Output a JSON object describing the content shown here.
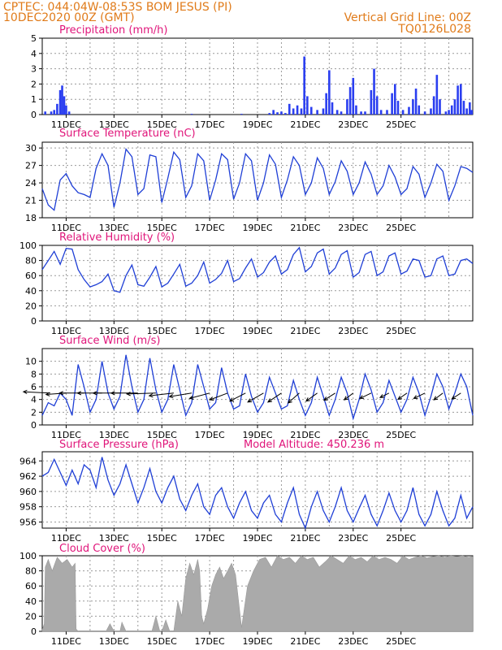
{
  "header": {
    "line1_left": "CPTEC:  044:04W-08:53S  BOM JESUS (PI)",
    "line2_left": "10DEC2020 00Z (GMT)",
    "line1_right": "Vertical Grid Line: 00Z",
    "line2_right": "TQ0126L028"
  },
  "colors": {
    "header_text": "#e07b1a",
    "panel_title": "#e0157a",
    "series_line": "#1f3fd6",
    "bars": "#2a3ef0",
    "cloud": "#aaaaaa"
  },
  "chart_data": [
    {
      "id": "precip",
      "type": "bar",
      "title": "Precipitation (mm/h)",
      "ylim": [
        0,
        5
      ],
      "yticks": [
        0,
        1,
        2,
        3,
        4,
        5
      ],
      "grid": true,
      "x_unit": "hours since 10DEC2020 00Z",
      "xlabels": [
        "11DEC",
        "13DEC",
        "15DEC",
        "17DEC",
        "19DEC",
        "21DEC",
        "23DEC",
        "25DEC"
      ],
      "bars": [
        {
          "t": 3,
          "v": 0.2
        },
        {
          "t": 9,
          "v": 0.2
        },
        {
          "t": 12,
          "v": 0.3
        },
        {
          "t": 15,
          "v": 0.7
        },
        {
          "t": 18,
          "v": 1.6
        },
        {
          "t": 20,
          "v": 1.9
        },
        {
          "t": 22,
          "v": 1.2
        },
        {
          "t": 24,
          "v": 0.6
        },
        {
          "t": 27,
          "v": 0.2
        },
        {
          "t": 150,
          "v": 0.05
        },
        {
          "t": 200,
          "v": 0.05
        },
        {
          "t": 228,
          "v": 0.1
        },
        {
          "t": 232,
          "v": 0.3
        },
        {
          "t": 236,
          "v": 0.15
        },
        {
          "t": 240,
          "v": 0.2
        },
        {
          "t": 244,
          "v": 0.1
        },
        {
          "t": 248,
          "v": 0.7
        },
        {
          "t": 252,
          "v": 0.4
        },
        {
          "t": 256,
          "v": 0.6
        },
        {
          "t": 260,
          "v": 0.4
        },
        {
          "t": 263,
          "v": 3.8
        },
        {
          "t": 266,
          "v": 1.2
        },
        {
          "t": 270,
          "v": 0.5
        },
        {
          "t": 276,
          "v": 0.3
        },
        {
          "t": 282,
          "v": 0.4
        },
        {
          "t": 285,
          "v": 1.4
        },
        {
          "t": 288,
          "v": 2.9
        },
        {
          "t": 291,
          "v": 0.8
        },
        {
          "t": 296,
          "v": 0.3
        },
        {
          "t": 300,
          "v": 0.2
        },
        {
          "t": 306,
          "v": 1.0
        },
        {
          "t": 309,
          "v": 1.8
        },
        {
          "t": 312,
          "v": 2.4
        },
        {
          "t": 315,
          "v": 0.6
        },
        {
          "t": 320,
          "v": 0.2
        },
        {
          "t": 324,
          "v": 0.2
        },
        {
          "t": 330,
          "v": 1.6
        },
        {
          "t": 333,
          "v": 3.0
        },
        {
          "t": 336,
          "v": 1.2
        },
        {
          "t": 340,
          "v": 0.3
        },
        {
          "t": 346,
          "v": 0.3
        },
        {
          "t": 351,
          "v": 1.4
        },
        {
          "t": 354,
          "v": 2.0
        },
        {
          "t": 357,
          "v": 0.9
        },
        {
          "t": 362,
          "v": 0.3
        },
        {
          "t": 368,
          "v": 0.5
        },
        {
          "t": 372,
          "v": 1.0
        },
        {
          "t": 375,
          "v": 1.7
        },
        {
          "t": 378,
          "v": 0.6
        },
        {
          "t": 384,
          "v": 0.2
        },
        {
          "t": 390,
          "v": 0.4
        },
        {
          "t": 393,
          "v": 1.2
        },
        {
          "t": 396,
          "v": 2.6
        },
        {
          "t": 399,
          "v": 1.0
        },
        {
          "t": 405,
          "v": 0.2
        },
        {
          "t": 408,
          "v": 0.3
        },
        {
          "t": 411,
          "v": 0.6
        },
        {
          "t": 414,
          "v": 1.0
        },
        {
          "t": 417,
          "v": 1.9
        },
        {
          "t": 420,
          "v": 2.0
        },
        {
          "t": 423,
          "v": 0.9
        },
        {
          "t": 426,
          "v": 0.4
        },
        {
          "t": 429,
          "v": 0.8
        },
        {
          "t": 431,
          "v": 0.3
        }
      ]
    },
    {
      "id": "temp",
      "type": "line",
      "title": "Surface Temperature (nC)",
      "ylim": [
        18,
        31
      ],
      "yticks": [
        18,
        21,
        24,
        27,
        30
      ],
      "grid": true,
      "x_unit": "hours since 10DEC2020 00Z",
      "xlabels": [
        "11DEC",
        "13DEC",
        "15DEC",
        "17DEC",
        "19DEC",
        "21DEC",
        "23DEC",
        "25DEC"
      ],
      "x": [
        0,
        6,
        12,
        18,
        24,
        30,
        36,
        42,
        48,
        54,
        60,
        66,
        72,
        78,
        84,
        90,
        96,
        102,
        108,
        114,
        120,
        126,
        132,
        138,
        144,
        150,
        156,
        162,
        168,
        174,
        180,
        186,
        192,
        198,
        204,
        210,
        216,
        222,
        228,
        234,
        240,
        246,
        252,
        258,
        264,
        270,
        276,
        282,
        288,
        294,
        300,
        306,
        312,
        318,
        324,
        330,
        336,
        342,
        348,
        354,
        360,
        366,
        372,
        378,
        384,
        390,
        396,
        402,
        408,
        414,
        420,
        426,
        432
      ],
      "y": [
        23.0,
        20.2,
        19.3,
        24.5,
        25.6,
        23.5,
        22.3,
        22.0,
        21.5,
        26.5,
        29.0,
        27.0,
        19.8,
        24.0,
        29.8,
        28.5,
        22.0,
        23.0,
        28.8,
        28.5,
        20.6,
        24.8,
        29.3,
        28.0,
        21.5,
        23.5,
        29.0,
        27.8,
        21.0,
        24.5,
        29.0,
        28.0,
        21.2,
        24.0,
        29.0,
        27.8,
        21.0,
        24.0,
        28.8,
        27.2,
        21.5,
        24.5,
        28.5,
        27.0,
        22.0,
        24.0,
        28.3,
        26.5,
        22.0,
        24.2,
        27.8,
        26.0,
        22.0,
        24.0,
        27.6,
        25.5,
        22.0,
        23.5,
        27.0,
        25.0,
        22.0,
        23.0,
        26.8,
        25.5,
        21.5,
        24.0,
        27.2,
        26.0,
        21.0,
        23.5,
        26.8,
        26.5,
        25.8
      ]
    },
    {
      "id": "rh",
      "type": "line",
      "title": "Relative Humidity (%)",
      "ylim": [
        0,
        100
      ],
      "yticks": [
        0,
        20,
        40,
        60,
        80,
        100
      ],
      "grid": true,
      "x_unit": "hours since 10DEC2020 00Z",
      "xlabels": [
        "11DEC",
        "13DEC",
        "15DEC",
        "17DEC",
        "19DEC",
        "21DEC",
        "23DEC",
        "25DEC"
      ],
      "x": [
        0,
        6,
        12,
        18,
        24,
        30,
        36,
        42,
        48,
        54,
        60,
        66,
        72,
        78,
        84,
        90,
        96,
        102,
        108,
        114,
        120,
        126,
        132,
        138,
        144,
        150,
        156,
        162,
        168,
        174,
        180,
        186,
        192,
        198,
        204,
        210,
        216,
        222,
        228,
        234,
        240,
        246,
        252,
        258,
        264,
        270,
        276,
        282,
        288,
        294,
        300,
        306,
        312,
        318,
        324,
        330,
        336,
        342,
        348,
        354,
        360,
        366,
        372,
        378,
        384,
        390,
        396,
        402,
        408,
        414,
        420,
        426,
        432
      ],
      "y": [
        68,
        80,
        92,
        75,
        96,
        95,
        68,
        55,
        45,
        48,
        52,
        62,
        40,
        38,
        60,
        74,
        48,
        46,
        58,
        72,
        45,
        50,
        62,
        75,
        46,
        50,
        60,
        78,
        50,
        55,
        63,
        80,
        52,
        56,
        70,
        82,
        58,
        64,
        78,
        86,
        62,
        68,
        88,
        97,
        65,
        72,
        90,
        95,
        62,
        70,
        88,
        93,
        58,
        64,
        88,
        92,
        60,
        65,
        86,
        90,
        62,
        66,
        82,
        80,
        58,
        60,
        82,
        86,
        60,
        62,
        80,
        82,
        76
      ]
    },
    {
      "id": "wind",
      "type": "line",
      "title": "Surface Wind (m/s)",
      "ylim": [
        0,
        12
      ],
      "yticks": [
        0,
        2,
        4,
        6,
        8,
        10
      ],
      "grid": true,
      "x_unit": "hours since 10DEC2020 00Z",
      "xlabels": [
        "11DEC",
        "13DEC",
        "15DEC",
        "17DEC",
        "19DEC",
        "21DEC",
        "23DEC",
        "25DEC"
      ],
      "x": [
        0,
        6,
        12,
        18,
        24,
        30,
        36,
        42,
        48,
        54,
        60,
        66,
        72,
        78,
        84,
        90,
        96,
        102,
        108,
        114,
        120,
        126,
        132,
        138,
        144,
        150,
        156,
        162,
        168,
        174,
        180,
        186,
        192,
        198,
        204,
        210,
        216,
        222,
        228,
        234,
        240,
        246,
        252,
        258,
        264,
        270,
        276,
        282,
        288,
        294,
        300,
        306,
        312,
        318,
        324,
        330,
        336,
        342,
        348,
        354,
        360,
        366,
        372,
        378,
        384,
        390,
        396,
        402,
        408,
        414,
        420,
        426,
        432
      ],
      "y": [
        1.5,
        3.5,
        3.0,
        5.0,
        4.0,
        1.5,
        9.5,
        6.0,
        2.0,
        4.0,
        10.0,
        5.0,
        2.5,
        4.5,
        11.0,
        6.0,
        2.0,
        4.0,
        10.5,
        5.5,
        2.0,
        4.0,
        9.5,
        5.5,
        1.5,
        3.5,
        9.5,
        6.0,
        2.5,
        3.5,
        9.0,
        5.0,
        2.5,
        3.0,
        8.0,
        4.5,
        2.0,
        3.5,
        7.5,
        5.0,
        2.5,
        3.0,
        7.0,
        4.0,
        1.5,
        3.5,
        7.5,
        4.5,
        1.5,
        4.0,
        7.5,
        5.0,
        1.0,
        4.0,
        8.0,
        5.5,
        2.0,
        3.5,
        7.0,
        4.5,
        2.0,
        4.0,
        7.5,
        5.0,
        1.5,
        4.5,
        8.0,
        6.0,
        2.5,
        5.0,
        8.0,
        6.0,
        1.5
      ],
      "vectors": [
        {
          "t": 8,
          "u": -6.0,
          "v": 0.3
        },
        {
          "t": 24,
          "u": -4.5,
          "v": -0.3
        },
        {
          "t": 42,
          "u": -5.5,
          "v": 0.0
        },
        {
          "t": 60,
          "u": -5.5,
          "v": 0.0
        },
        {
          "t": 78,
          "u": -6.0,
          "v": 0.0
        },
        {
          "t": 96,
          "u": -6.0,
          "v": 0.0
        },
        {
          "t": 114,
          "u": -6.5,
          "v": -0.2
        },
        {
          "t": 132,
          "u": -5.5,
          "v": -0.6
        },
        {
          "t": 150,
          "u": -5.0,
          "v": -0.8
        },
        {
          "t": 168,
          "u": -4.5,
          "v": -1.2
        },
        {
          "t": 186,
          "u": -4.0,
          "v": -1.5
        },
        {
          "t": 204,
          "u": -3.5,
          "v": -1.8
        },
        {
          "t": 222,
          "u": -3.5,
          "v": -2.0
        },
        {
          "t": 240,
          "u": -3.0,
          "v": -2.0
        },
        {
          "t": 258,
          "u": -2.5,
          "v": -2.2
        },
        {
          "t": 276,
          "u": -2.5,
          "v": -1.8
        },
        {
          "t": 294,
          "u": -2.5,
          "v": -1.6
        },
        {
          "t": 312,
          "u": -2.0,
          "v": -1.5
        },
        {
          "t": 330,
          "u": -2.5,
          "v": -1.2
        },
        {
          "t": 348,
          "u": -2.0,
          "v": -1.0
        },
        {
          "t": 366,
          "u": -2.0,
          "v": -1.4
        },
        {
          "t": 384,
          "u": -2.5,
          "v": -1.2
        },
        {
          "t": 402,
          "u": -2.0,
          "v": -1.5
        },
        {
          "t": 420,
          "u": -2.0,
          "v": -1.3
        }
      ]
    },
    {
      "id": "pressure",
      "type": "line",
      "title": "Surface Pressure (hPa)",
      "annotation": "Model Altitude: 450.236 m",
      "ylim": [
        955.2,
        965.2
      ],
      "yticks": [
        956,
        958,
        960,
        962,
        964
      ],
      "grid": true,
      "x_unit": "hours since 10DEC2020 00Z",
      "xlabels": [
        "11DEC",
        "13DEC",
        "15DEC",
        "17DEC",
        "19DEC",
        "21DEC",
        "23DEC",
        "25DEC"
      ],
      "x": [
        0,
        6,
        12,
        18,
        24,
        30,
        36,
        42,
        48,
        54,
        60,
        66,
        72,
        78,
        84,
        90,
        96,
        102,
        108,
        114,
        120,
        126,
        132,
        138,
        144,
        150,
        156,
        162,
        168,
        174,
        180,
        186,
        192,
        198,
        204,
        210,
        216,
        222,
        228,
        234,
        240,
        246,
        252,
        258,
        264,
        270,
        276,
        282,
        288,
        294,
        300,
        306,
        312,
        318,
        324,
        330,
        336,
        342,
        348,
        354,
        360,
        366,
        372,
        378,
        384,
        390,
        396,
        402,
        408,
        414,
        420,
        426,
        432
      ],
      "y": [
        962.0,
        962.5,
        964.2,
        962.5,
        960.8,
        962.8,
        961.0,
        963.5,
        962.8,
        960.5,
        964.5,
        961.5,
        959.5,
        961.0,
        963.5,
        961.0,
        958.5,
        960.5,
        963.0,
        960.0,
        958.5,
        960.5,
        962.0,
        959.0,
        957.5,
        959.5,
        961.0,
        958.0,
        957.0,
        959.5,
        960.5,
        958.0,
        956.5,
        958.5,
        960.0,
        957.5,
        956.5,
        958.5,
        959.5,
        957.0,
        956.0,
        958.5,
        960.5,
        957.0,
        955.2,
        958.0,
        960.0,
        957.5,
        956.0,
        958.0,
        960.5,
        957.5,
        956.0,
        957.8,
        959.5,
        957.0,
        955.5,
        957.5,
        959.8,
        957.5,
        956.0,
        957.5,
        960.5,
        957.0,
        955.5,
        957.0,
        960.0,
        957.5,
        955.5,
        956.5,
        959.5,
        956.5,
        958.0
      ]
    },
    {
      "id": "cloud",
      "type": "area",
      "title": "Cloud Cover (%)",
      "ylim": [
        0,
        100
      ],
      "yticks": [
        0,
        20,
        40,
        60,
        80,
        100
      ],
      "grid": true,
      "x_unit": "hours since 10DEC2020 00Z",
      "xlabels": [
        "11DEC",
        "13DEC",
        "15DEC",
        "17DEC",
        "19DEC",
        "21DEC",
        "23DEC",
        "25DEC"
      ],
      "x": [
        0,
        2,
        3,
        6,
        10,
        15,
        20,
        25,
        30,
        33,
        34,
        36,
        40,
        48,
        50,
        56,
        60,
        64,
        68,
        72,
        78,
        80,
        84,
        88,
        92,
        96,
        100,
        104,
        108,
        110,
        114,
        118,
        120,
        124,
        128,
        132,
        136,
        140,
        144,
        148,
        152,
        156,
        158,
        160,
        162,
        166,
        170,
        174,
        178,
        182,
        186,
        190,
        194,
        200,
        206,
        212,
        218,
        224,
        230,
        236,
        242,
        248,
        254,
        260,
        266,
        272,
        278,
        284,
        290,
        296,
        302,
        308,
        314,
        320,
        326,
        332,
        338,
        344,
        350,
        356,
        362,
        368,
        374,
        380,
        386,
        392,
        398,
        404,
        410,
        416,
        422,
        428,
        432
      ],
      "y": [
        2,
        10,
        85,
        95,
        80,
        98,
        90,
        95,
        85,
        90,
        3,
        0,
        0,
        0,
        0,
        0,
        0,
        0,
        10,
        0,
        0,
        12,
        0,
        0,
        0,
        0,
        0,
        0,
        0,
        0,
        20,
        0,
        0,
        15,
        0,
        0,
        40,
        20,
        70,
        90,
        75,
        95,
        80,
        20,
        10,
        30,
        60,
        75,
        85,
        70,
        80,
        90,
        75,
        5,
        60,
        80,
        95,
        98,
        85,
        100,
        95,
        98,
        90,
        100,
        95,
        98,
        85,
        92,
        100,
        95,
        90,
        100,
        95,
        98,
        92,
        100,
        95,
        98,
        95,
        90,
        100,
        95,
        98,
        100,
        97,
        99,
        100,
        98,
        100,
        99,
        100,
        98,
        99
      ]
    }
  ]
}
